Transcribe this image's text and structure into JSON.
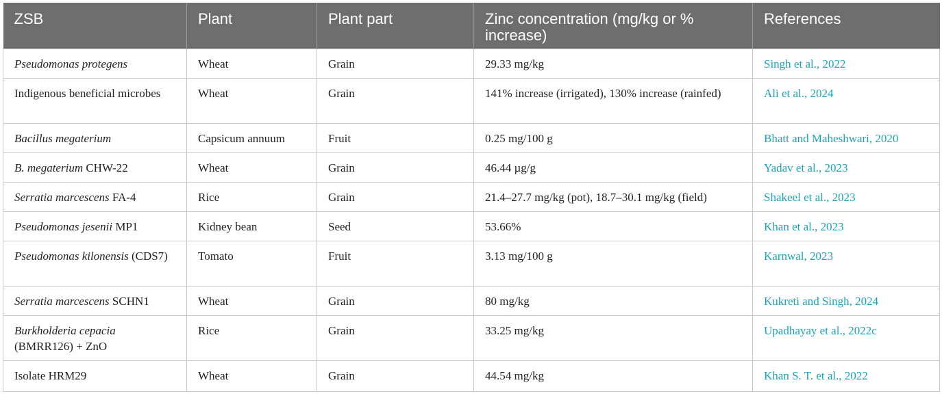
{
  "table": {
    "headers": [
      "ZSB",
      "Plant",
      "Plant part",
      "Zinc concentration (mg/kg or % increase)",
      "References"
    ],
    "rows": [
      {
        "zsb_italic": "Pseudomonas protegens",
        "zsb_rest": "",
        "plant": "Wheat",
        "part": "Grain",
        "zinc": "29.33 mg/kg",
        "ref": "Singh et al., 2022"
      },
      {
        "zsb_italic": "",
        "zsb_rest": "Indigenous beneficial microbes",
        "plant": "Wheat",
        "part": "Grain",
        "zinc": "141% increase (irrigated), 130% increase (rainfed)",
        "ref": "Ali et al., 2024"
      },
      {
        "zsb_italic": "Bacillus megaterium",
        "zsb_rest": "",
        "plant": "Capsicum annuum",
        "part": "Fruit",
        "zinc": "0.25 mg/100 g",
        "ref": "Bhatt and Maheshwari, 2020"
      },
      {
        "zsb_italic": "B. megaterium",
        "zsb_rest": " CHW-22",
        "plant": "Wheat",
        "part": "Grain",
        "zinc": "46.44 µg/g",
        "ref": "Yadav et al., 2023"
      },
      {
        "zsb_italic": "Serratia marcescens",
        "zsb_rest": " FA-4",
        "plant": "Rice",
        "part": "Grain",
        "zinc": "21.4–27.7 mg/kg (pot), 18.7–30.1 mg/kg (field)",
        "ref": "Shakeel et al., 2023"
      },
      {
        "zsb_italic": "Pseudomonas jesenii",
        "zsb_rest": " MP1",
        "plant": "Kidney bean",
        "part": "Seed",
        "zinc": "53.66%",
        "ref": "Khan et al., 2023"
      },
      {
        "zsb_italic": "Pseudomonas kilonensis",
        "zsb_rest": " (CDS7)",
        "plant": "Tomato",
        "part": "Fruit",
        "zinc": "3.13 mg/100 g",
        "ref": "Karnwal, 2023"
      },
      {
        "zsb_italic": "Serratia marcescens",
        "zsb_rest": " SCHN1",
        "plant": "Wheat",
        "part": "Grain",
        "zinc": "80 mg/kg",
        "ref": "Kukreti and Singh, 2024"
      },
      {
        "zsb_italic": "Burkholderia cepacia",
        "zsb_rest": " (BMRR126) + ZnO",
        "plant": "Rice",
        "part": "Grain",
        "zinc": "33.25 mg/kg",
        "ref": "Upadhayay et al., 2022c"
      },
      {
        "zsb_italic": "",
        "zsb_rest": "Isolate HRM29",
        "plant": "Wheat",
        "part": "Grain",
        "zinc": "44.54 mg/kg",
        "ref": "Khan S. T. et al., 2022"
      }
    ]
  },
  "colors": {
    "header_bg": "#6e6e6e",
    "header_text": "#ffffff",
    "reference_link": "#1aa3b9",
    "grid": "#c8c8c8"
  }
}
